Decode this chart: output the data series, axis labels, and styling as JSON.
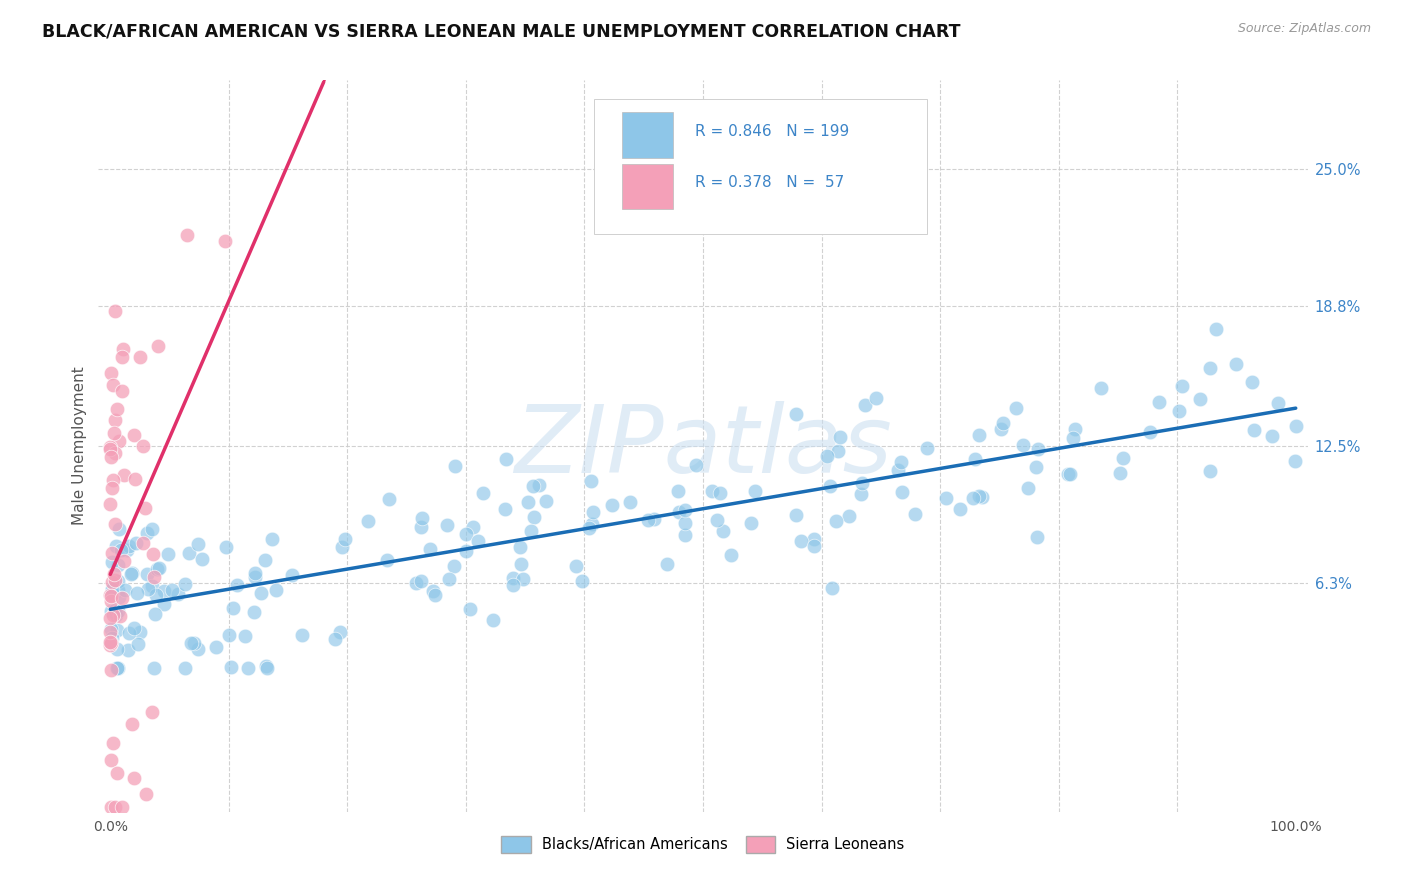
{
  "title": "BLACK/AFRICAN AMERICAN VS SIERRA LEONEAN MALE UNEMPLOYMENT CORRELATION CHART",
  "source": "Source: ZipAtlas.com",
  "ylabel": "Male Unemployment",
  "blue_R": 0.846,
  "blue_N": 199,
  "pink_R": 0.378,
  "pink_N": 57,
  "blue_color": "#8ec6e8",
  "pink_color": "#f4a0b8",
  "blue_line_color": "#1a6db5",
  "pink_line_color": "#e0306a",
  "watermark_text": "ZIPatlas",
  "watermark_color": "#c8ddf0",
  "legend_label_blue": "Blacks/African Americans",
  "legend_label_pink": "Sierra Leoneans",
  "background_color": "#ffffff",
  "grid_color": "#cccccc",
  "title_color": "#111111",
  "axis_label_color": "#555555",
  "right_tick_color": "#3d85c8",
  "ytick_vals": [
    0.063,
    0.125,
    0.188,
    0.25
  ],
  "ytick_labels": [
    "6.3%",
    "12.5%",
    "18.8%",
    "25.0%"
  ],
  "xlim": [
    -0.01,
    1.01
  ],
  "ylim": [
    -0.04,
    0.29
  ]
}
